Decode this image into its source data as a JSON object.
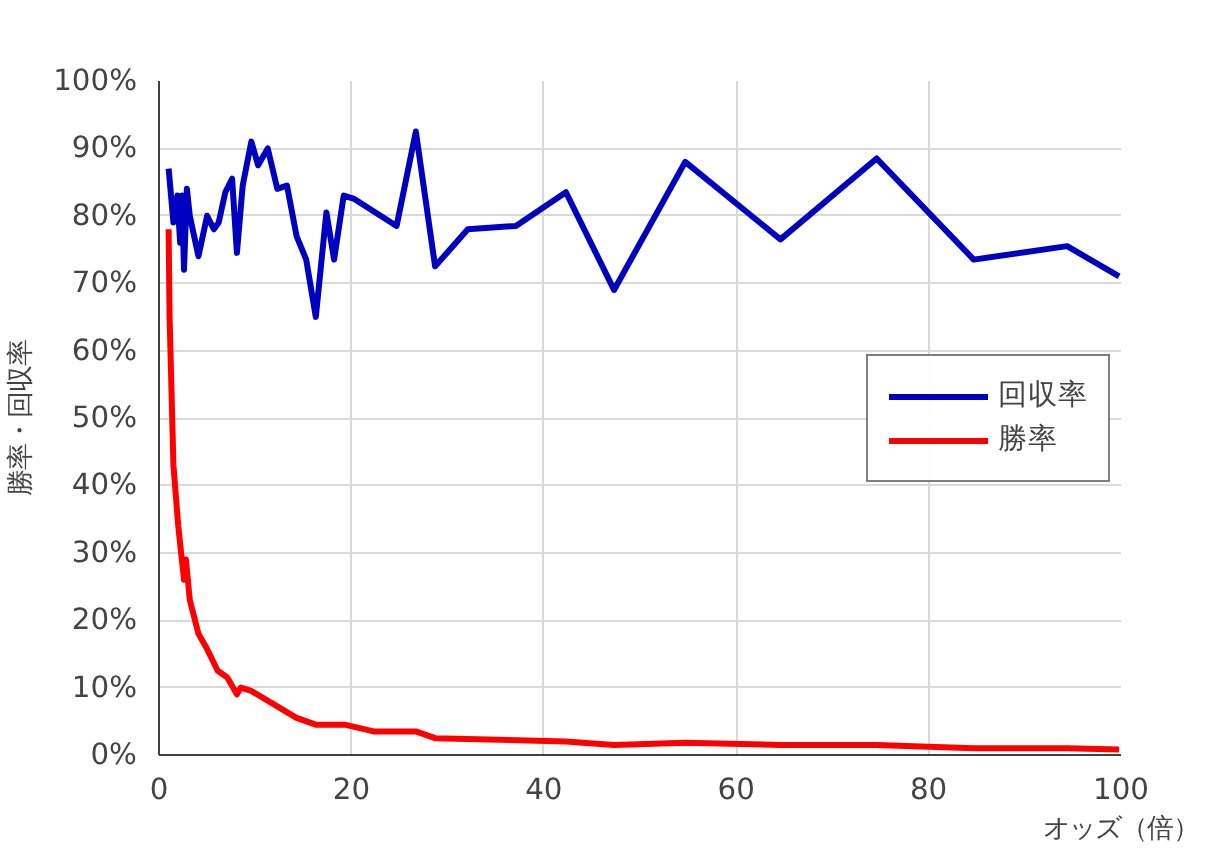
{
  "chart_data": {
    "type": "line",
    "xlabel": "オッズ（倍）",
    "ylabel": "勝率・回収率",
    "xlim": [
      0,
      100
    ],
    "xticks": [
      0,
      20,
      40,
      60,
      80,
      100
    ],
    "ylim": [
      0,
      100
    ],
    "yticks": [
      {
        "value": 0,
        "label": "0%"
      },
      {
        "value": 10,
        "label": "10%"
      },
      {
        "value": 20,
        "label": "20%"
      },
      {
        "value": 30,
        "label": "30%"
      },
      {
        "value": 40,
        "label": "40%"
      },
      {
        "value": 50,
        "label": "50%"
      },
      {
        "value": 60,
        "label": "60%"
      },
      {
        "value": 70,
        "label": "70%"
      },
      {
        "value": 80,
        "label": "80%"
      },
      {
        "value": 90,
        "label": "90%"
      },
      {
        "value": 100,
        "label": "100%"
      }
    ],
    "grid": true,
    "legend": "right",
    "marker": "none",
    "line_style": "solid",
    "series": [
      {
        "name": "回収率",
        "color": "#0000c0",
        "x": [
          1.0,
          1.5,
          1.9,
          2.2,
          2.4,
          2.6,
          2.9,
          3.2,
          4.1,
          5.0,
          5.7,
          6.2,
          6.9,
          7.6,
          8.1,
          8.7,
          9.6,
          10.3,
          11.3,
          12.3,
          13.3,
          14.3,
          15.3,
          16.3,
          17.4,
          18.2,
          19.2,
          20.3,
          24.7,
          26.7,
          28.7,
          32.1,
          37.1,
          42.3,
          47.3,
          54.7,
          64.6,
          74.6,
          84.7,
          94.4,
          99.8
        ],
        "values": [
          87,
          79,
          83,
          76,
          83,
          72,
          84,
          80,
          74,
          80,
          78,
          79,
          83.5,
          85.5,
          74.5,
          84.5,
          91,
          87.5,
          90,
          84,
          84.5,
          77,
          73.5,
          65,
          80.5,
          73.5,
          83,
          82.5,
          78.5,
          92.5,
          72.5,
          78,
          78.5,
          83.5,
          69,
          88,
          76.5,
          88.5,
          73.5,
          75.5,
          71
        ]
      },
      {
        "name": "勝率",
        "color": "#ff0000",
        "x": [
          1.0,
          1.1,
          1.5,
          2.0,
          2.6,
          2.8,
          3.2,
          4.1,
          4.9,
          6.1,
          7.1,
          8.1,
          8.5,
          9.6,
          14.3,
          16.3,
          17.3,
          19.3,
          22.3,
          26.7,
          28.7,
          42.3,
          47.3,
          54.7,
          64.6,
          74.6,
          84.7,
          94.4,
          99.8
        ],
        "values": [
          78,
          65,
          43,
          34,
          26,
          29,
          23,
          18,
          16,
          12.5,
          11.5,
          9,
          10,
          9.5,
          5.5,
          4.5,
          4.5,
          4.5,
          3.5,
          3.5,
          2.5,
          2,
          1.5,
          1.8,
          1.5,
          1.5,
          1,
          1,
          0.8
        ]
      }
    ]
  }
}
